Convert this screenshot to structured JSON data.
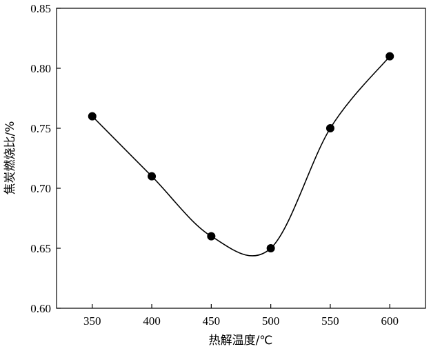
{
  "chart_data": {
    "type": "line",
    "xlabel": "热解温度/℃",
    "ylabel": "焦炭燃烧比/%",
    "x": [
      350,
      400,
      450,
      500,
      550,
      600
    ],
    "series": [
      {
        "values": [
          0.76,
          0.71,
          0.66,
          0.65,
          0.75,
          0.81
        ]
      }
    ],
    "xlim": [
      320,
      630
    ],
    "ylim": [
      0.6,
      0.85
    ],
    "xticks": [
      "350",
      "400",
      "450",
      "500",
      "550",
      "600"
    ],
    "yticks": [
      "0.60",
      "0.65",
      "0.70",
      "0.75",
      "0.80",
      "0.85"
    ],
    "smooth": true,
    "marker": "filled-circle",
    "grid": false,
    "line_color": "#000000"
  }
}
